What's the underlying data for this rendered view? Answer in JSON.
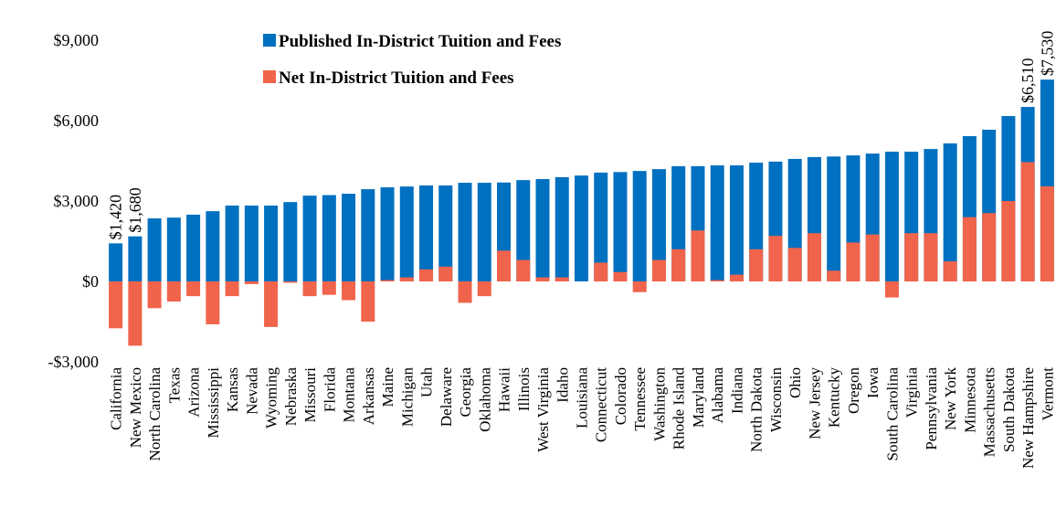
{
  "chart_data": {
    "type": "bar",
    "categories": [
      "California",
      "New Mexico",
      "North Carolina",
      "Texas",
      "Arizona",
      "Mississippi",
      "Kansas",
      "Nevada",
      "Wyoming",
      "Nebraska",
      "Missouri",
      "Florida",
      "Montana",
      "Arkansas",
      "Maine",
      "Michigan",
      "Utah",
      "Delaware",
      "Georgia",
      "Oklahoma",
      "Hawaii",
      "Illinois",
      "West Virginia",
      "Idaho",
      "Louisiana",
      "Connecticut",
      "Colorado",
      "Tennessee",
      "Washington",
      "Rhode Island",
      "Maryland",
      "Alabama",
      "Indiana",
      "North Dakota",
      "Wisconsin",
      "Ohio",
      "New Jersey",
      "Kentucky",
      "Oregon",
      "Iowa",
      "South Carolina",
      "Virginia",
      "Pennsylvania",
      "New York",
      "Minnesota",
      "Massachusetts",
      "South Dakota",
      "New Hampshire",
      "Vermont"
    ],
    "series": [
      {
        "name": "Published In-District Tuition and Fees",
        "color": "#0070c0",
        "values": [
          1420,
          1680,
          2350,
          2380,
          2490,
          2620,
          2830,
          2830,
          2830,
          2960,
          3200,
          3220,
          3270,
          3440,
          3510,
          3540,
          3580,
          3580,
          3680,
          3680,
          3690,
          3780,
          3820,
          3890,
          3950,
          4060,
          4080,
          4120,
          4190,
          4300,
          4300,
          4330,
          4330,
          4430,
          4470,
          4570,
          4640,
          4660,
          4700,
          4770,
          4840,
          4840,
          4940,
          5150,
          5420,
          5660,
          6170,
          6510,
          7530
        ],
        "value_labels": [
          "$1,420",
          "$1,680",
          null,
          null,
          null,
          null,
          null,
          null,
          null,
          null,
          null,
          null,
          null,
          null,
          null,
          null,
          null,
          null,
          null,
          null,
          null,
          null,
          null,
          null,
          null,
          null,
          null,
          null,
          null,
          null,
          null,
          null,
          null,
          null,
          null,
          null,
          null,
          null,
          null,
          null,
          null,
          null,
          null,
          null,
          null,
          null,
          null,
          "$6,510",
          "$7,530"
        ]
      },
      {
        "name": "Net In-District Tuition and Fees",
        "color": "#f0644b",
        "values": [
          -1750,
          -2400,
          -1000,
          -750,
          -550,
          -1600,
          -550,
          -100,
          -1700,
          -50,
          -550,
          -500,
          -700,
          -1500,
          50,
          150,
          450,
          550,
          -800,
          -550,
          1150,
          800,
          150,
          150,
          0,
          700,
          350,
          -400,
          800,
          1200,
          1900,
          50,
          250,
          1200,
          1700,
          1250,
          1800,
          400,
          1450,
          1750,
          -600,
          1800,
          1800,
          750,
          2400,
          2550,
          3000,
          4450,
          3550
        ]
      }
    ],
    "ylim": [
      -3000,
      9000
    ],
    "yticks": [
      {
        "value": -3000,
        "label": "-$3,000"
      },
      {
        "value": 0,
        "label": "$0"
      },
      {
        "value": 3000,
        "label": "$3,000"
      },
      {
        "value": 6000,
        "label": "$6,000"
      },
      {
        "value": 9000,
        "label": "$9,000"
      }
    ]
  }
}
